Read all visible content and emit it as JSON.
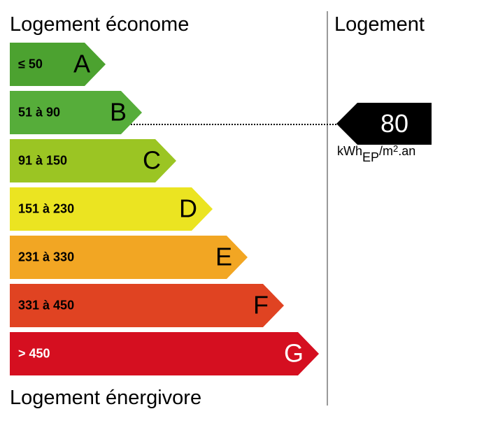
{
  "header": {
    "top_label": "Logement économe",
    "bottom_label": "Logement énergivore",
    "column_title": "Logement"
  },
  "bands": [
    {
      "range": "≤ 50",
      "letter": "A",
      "color": "#4ca230"
    },
    {
      "range": "51 à 90",
      "letter": "B",
      "color": "#56ad3a"
    },
    {
      "range": "91 à 150",
      "letter": "C",
      "color": "#9bc523"
    },
    {
      "range": "151 à 230",
      "letter": "D",
      "color": "#ebe421"
    },
    {
      "range": "231 à 330",
      "letter": "E",
      "color": "#f2a623"
    },
    {
      "range": "331 à 450",
      "letter": "F",
      "color": "#e04322"
    },
    {
      "range": "> 450",
      "letter": "G",
      "color": "#d50f20"
    }
  ],
  "indicator": {
    "value": "80",
    "unit_main": "kWh",
    "unit_sub": "EP",
    "unit_rest": "/m",
    "unit_sup": "2",
    "unit_end": ".an",
    "band_letter": "B"
  }
}
